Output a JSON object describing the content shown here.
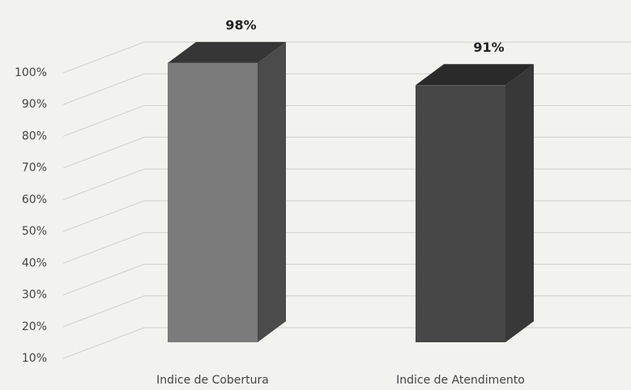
{
  "chart_data": {
    "type": "bar3d",
    "categories": [
      "Indice de Cobertura",
      "Indice de Atendimento"
    ],
    "values": [
      98,
      91
    ],
    "value_labels": [
      "98%",
      "91%"
    ],
    "colors": [
      {
        "front": "#7b7b7b",
        "side": "#4b4b4b",
        "top": "#363636"
      },
      {
        "front": "#474747",
        "side": "#383838",
        "top": "#2a2a2a"
      }
    ],
    "ylim": [
      10,
      100
    ],
    "yticks": [
      {
        "value": 10,
        "label": "10%"
      },
      {
        "value": 20,
        "label": "20%"
      },
      {
        "value": 30,
        "label": "30%"
      },
      {
        "value": 40,
        "label": "40%"
      },
      {
        "value": 50,
        "label": "50%"
      },
      {
        "value": 60,
        "label": "60%"
      },
      {
        "value": 70,
        "label": "70%"
      },
      {
        "value": 80,
        "label": "80%"
      },
      {
        "value": 90,
        "label": "90%"
      },
      {
        "value": 100,
        "label": "100%"
      }
    ],
    "grid": true
  }
}
